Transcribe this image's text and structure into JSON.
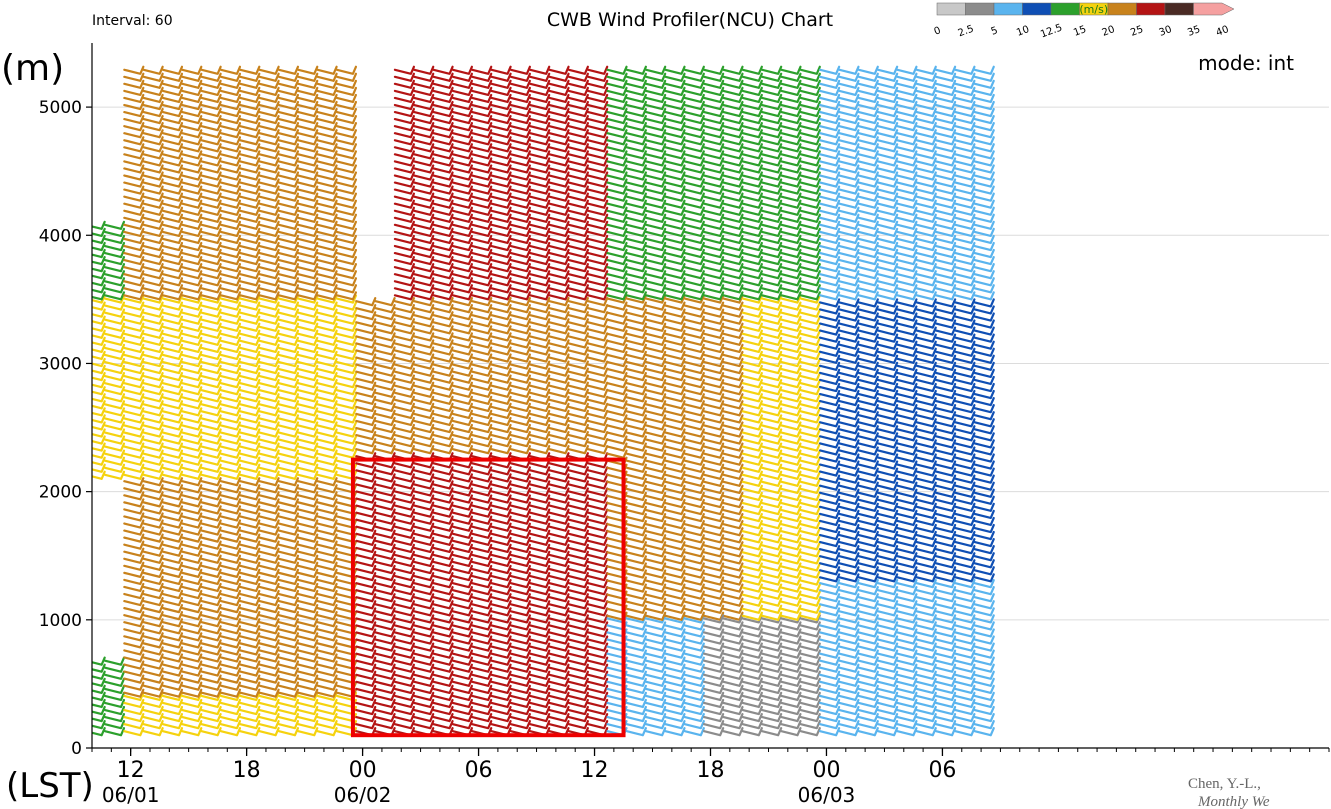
{
  "chart_data": {
    "type": "wind-barb time-height",
    "title": "CWB Wind Profiler(NCU) Chart",
    "interval_label": "Interval: 60",
    "mode_label": "mode: int",
    "ylabel": "(m)",
    "xlabel": "(LST)",
    "ylim": [
      0,
      5500
    ],
    "yticks": [
      0,
      1000,
      2000,
      3000,
      4000,
      5000
    ],
    "x_range_hours": [
      -2,
      62
    ],
    "x_hour_per_profile": 1,
    "x_ticks": [
      {
        "hour": 0,
        "label": "12",
        "date": "06/01"
      },
      {
        "hour": 6,
        "label": "18",
        "date": ""
      },
      {
        "hour": 12,
        "label": "00",
        "date": "06/02"
      },
      {
        "hour": 18,
        "label": "06",
        "date": ""
      },
      {
        "hour": 24,
        "label": "12",
        "date": ""
      },
      {
        "hour": 30,
        "label": "18",
        "date": ""
      },
      {
        "hour": 36,
        "label": "00",
        "date": "06/03"
      },
      {
        "hour": 42,
        "label": "06",
        "date": ""
      }
    ],
    "colorbar": {
      "unit": "(m/s)",
      "bounds": [
        "0",
        "2.5",
        "5",
        "10",
        "12.5",
        "15",
        "20",
        "25",
        "30",
        "35",
        "40"
      ],
      "colors": [
        "#c8c8c8",
        "#8c8c8c",
        "#5ab4ee",
        "#0f4fb4",
        "#2ca02c",
        "#f5d20f",
        "#c8821c",
        "#b41414",
        "#4a2a24",
        "#f5a0a0"
      ]
    },
    "highlight_box": {
      "x_hours": [
        11.5,
        25.5
      ],
      "y_m": [
        100,
        2250
      ],
      "color": "#ee0000"
    },
    "wind_regimes": [
      {
        "x_hours": [
          -2,
          0
        ],
        "y_m": [
          100,
          700
        ],
        "speed_class": 4
      },
      {
        "x_hours": [
          0,
          12
        ],
        "y_m": [
          100,
          400
        ],
        "speed_class": 5
      },
      {
        "x_hours": [
          0,
          12
        ],
        "y_m": [
          400,
          1500
        ],
        "speed_class": 6
      },
      {
        "x_hours": [
          0,
          12
        ],
        "y_m": [
          1500,
          2100
        ],
        "speed_class": 6
      },
      {
        "x_hours": [
          -2,
          12
        ],
        "y_m": [
          2100,
          3500
        ],
        "speed_class": 5
      },
      {
        "x_hours": [
          -2,
          0
        ],
        "y_m": [
          3500,
          4100
        ],
        "speed_class": 4
      },
      {
        "x_hours": [
          0,
          12
        ],
        "y_m": [
          3500,
          5300
        ],
        "speed_class": 6
      },
      {
        "x_hours": [
          12,
          25
        ],
        "y_m": [
          100,
          2300
        ],
        "speed_class": 7
      },
      {
        "x_hours": [
          12,
          25
        ],
        "y_m": [
          2300,
          3500
        ],
        "speed_class": 6
      },
      {
        "x_hours": [
          14,
          25
        ],
        "y_m": [
          3500,
          5300
        ],
        "speed_class": 7
      },
      {
        "x_hours": [
          25,
          30
        ],
        "y_m": [
          100,
          1000
        ],
        "speed_class": 2
      },
      {
        "x_hours": [
          25,
          32
        ],
        "y_m": [
          1000,
          3500
        ],
        "speed_class": 6
      },
      {
        "x_hours": [
          30,
          36
        ],
        "y_m": [
          100,
          1000
        ],
        "speed_class": 1
      },
      {
        "x_hours": [
          32,
          36
        ],
        "y_m": [
          1000,
          3500
        ],
        "speed_class": 5
      },
      {
        "x_hours": [
          25,
          36
        ],
        "y_m": [
          3500,
          5300
        ],
        "speed_class": 4
      },
      {
        "x_hours": [
          36,
          45
        ],
        "y_m": [
          100,
          1300
        ],
        "speed_class": 2
      },
      {
        "x_hours": [
          36,
          45
        ],
        "y_m": [
          1300,
          3500
        ],
        "speed_class": 3
      },
      {
        "x_hours": [
          36,
          45
        ],
        "y_m": [
          3500,
          5300
        ],
        "speed_class": 2
      }
    ]
  },
  "citation": "Chen, Y.-L.,",
  "citation_line2": "Monthly We"
}
